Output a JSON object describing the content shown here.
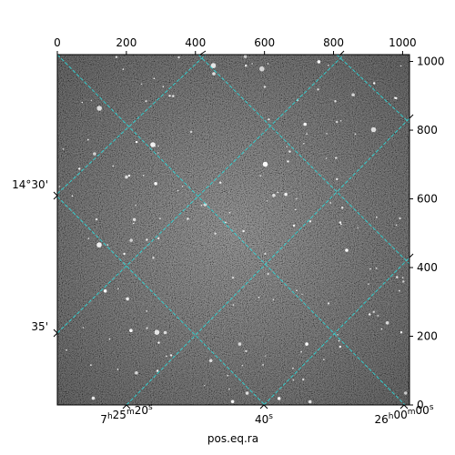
{
  "chart_data": {
    "type": "image",
    "xlabel": "pos.eq.ra",
    "pixel_x_ticks": [
      "0",
      "200",
      "400",
      "600",
      "800",
      "1000"
    ],
    "pixel_y_ticks": [
      "0",
      "200",
      "400",
      "600",
      "800",
      "1000"
    ],
    "pixel_range": [
      0,
      1020
    ],
    "ra_ticks": [
      {
        "h": "7",
        "m": "25",
        "s": "20"
      },
      {
        "h": "",
        "m": "",
        "s": "40"
      },
      {
        "h": "26",
        "m": "00",
        "s": "00"
      }
    ],
    "ra_tick_labels": [
      "7h25m20s",
      "40s",
      "26m00s"
    ],
    "dec_tick_labels": [
      "14°30'",
      "35'"
    ],
    "grid_color": "#2fd6d6",
    "grid": true,
    "image_cmap": "gray"
  }
}
